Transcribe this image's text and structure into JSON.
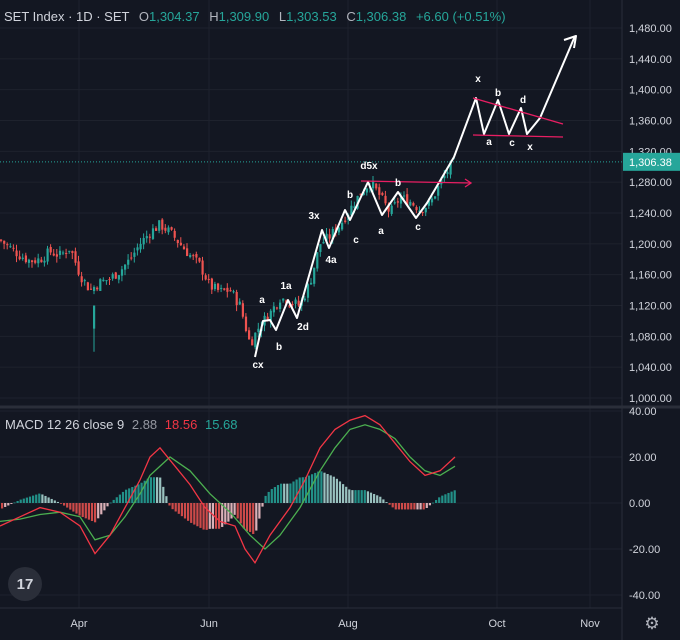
{
  "header": {
    "title": "SET Index · 1D · SET",
    "open_label": "O",
    "open": "1,304.37",
    "high_label": "H",
    "high": "1,309.90",
    "low_label": "L",
    "low": "1,303.53",
    "close_label": "C",
    "close": "1,306.38",
    "change": "+6.60 (+0.51%)"
  },
  "macd_header": {
    "name": "MACD 12 26 close 9",
    "hist": "2.88",
    "macd": "18.56",
    "signal": "15.68"
  },
  "price_axis": {
    "ticks": [
      "1,480.00",
      "1,440.00",
      "1,400.00",
      "1,360.00",
      "1,320.00",
      "1,280.00",
      "1,240.00",
      "1,200.00",
      "1,160.00",
      "1,120.00",
      "1,080.00",
      "1,040.00",
      "1,000.00"
    ],
    "last_price": "1,306.38"
  },
  "macd_axis": {
    "ticks": [
      "40.00",
      "20.00",
      "0.00",
      "-20.00",
      "-40.00"
    ]
  },
  "time_axis": {
    "ticks": [
      "Apr",
      "Jun",
      "Aug",
      "Oct",
      "Nov"
    ]
  },
  "colors": {
    "background": "#131722",
    "up": "#26a69a",
    "down": "#ef5350",
    "macd": "#f23645",
    "signal": "#4caf50",
    "wave": "#ffffff",
    "resistance": "#e91e63"
  },
  "icons": {
    "logo": "tradingview-logo",
    "settings": "gear-icon"
  },
  "chart_data": [
    {
      "type": "candlestick",
      "series_name": "SET Index",
      "interval": "1D",
      "ylim": [
        1000,
        1480
      ],
      "last": 1306.38,
      "anchors": [
        [
          0,
          1205
        ],
        [
          10,
          1195
        ],
        [
          20,
          1185
        ],
        [
          30,
          1178
        ],
        [
          40,
          1180
        ],
        [
          50,
          1190
        ],
        [
          60,
          1185
        ],
        [
          70,
          1195
        ],
        [
          80,
          1160
        ],
        [
          90,
          1140
        ],
        [
          100,
          1150
        ],
        [
          110,
          1155
        ],
        [
          120,
          1165
        ],
        [
          130,
          1180
        ],
        [
          140,
          1200
        ],
        [
          150,
          1215
        ],
        [
          160,
          1225
        ],
        [
          170,
          1215
        ],
        [
          180,
          1200
        ],
        [
          190,
          1185
        ],
        [
          200,
          1172
        ],
        [
          210,
          1145
        ],
        [
          220,
          1138
        ],
        [
          230,
          1140
        ],
        [
          240,
          1120
        ],
        [
          250,
          1070
        ],
        [
          260,
          1095
        ],
        [
          270,
          1110
        ],
        [
          280,
          1130
        ],
        [
          290,
          1125
        ],
        [
          300,
          1120
        ],
        [
          310,
          1150
        ],
        [
          320,
          1200
        ],
        [
          330,
          1210
        ],
        [
          340,
          1225
        ],
        [
          350,
          1245
        ],
        [
          360,
          1265
        ],
        [
          370,
          1280
        ],
        [
          380,
          1262
        ],
        [
          390,
          1240
        ],
        [
          400,
          1260
        ],
        [
          410,
          1255
        ],
        [
          420,
          1245
        ],
        [
          430,
          1252
        ],
        [
          440,
          1278
        ],
        [
          450,
          1300
        ],
        [
          455,
          1306
        ]
      ],
      "outlier": [
        94,
        1090,
        1120,
        1060
      ]
    },
    {
      "type": "line",
      "title": "MACD 12 26 close 9",
      "ylim": [
        -44,
        44
      ],
      "macd": [
        [
          0,
          -10
        ],
        [
          20,
          -6
        ],
        [
          40,
          -2
        ],
        [
          60,
          -4
        ],
        [
          80,
          -10
        ],
        [
          95,
          -22
        ],
        [
          110,
          -14
        ],
        [
          125,
          -2
        ],
        [
          140,
          10
        ],
        [
          150,
          20
        ],
        [
          160,
          24
        ],
        [
          175,
          16
        ],
        [
          190,
          8
        ],
        [
          205,
          -2
        ],
        [
          220,
          -8
        ],
        [
          235,
          -10
        ],
        [
          245,
          -20
        ],
        [
          255,
          -26
        ],
        [
          270,
          -14
        ],
        [
          290,
          -2
        ],
        [
          305,
          10
        ],
        [
          320,
          24
        ],
        [
          335,
          32
        ],
        [
          350,
          36
        ],
        [
          365,
          38
        ],
        [
          380,
          34
        ],
        [
          395,
          26
        ],
        [
          410,
          18
        ],
        [
          425,
          12
        ],
        [
          440,
          14
        ],
        [
          455,
          20
        ]
      ],
      "signal": [
        [
          0,
          -8
        ],
        [
          20,
          -7
        ],
        [
          40,
          -5
        ],
        [
          60,
          -4
        ],
        [
          80,
          -6
        ],
        [
          95,
          -16
        ],
        [
          110,
          -14
        ],
        [
          125,
          -6
        ],
        [
          140,
          4
        ],
        [
          150,
          12
        ],
        [
          170,
          20
        ],
        [
          190,
          14
        ],
        [
          210,
          4
        ],
        [
          230,
          -4
        ],
        [
          250,
          -14
        ],
        [
          265,
          -20
        ],
        [
          280,
          -14
        ],
        [
          300,
          -2
        ],
        [
          320,
          14
        ],
        [
          335,
          24
        ],
        [
          350,
          32
        ],
        [
          365,
          34
        ],
        [
          380,
          32
        ],
        [
          395,
          28
        ],
        [
          410,
          20
        ],
        [
          425,
          14
        ],
        [
          440,
          12
        ],
        [
          455,
          16
        ]
      ]
    }
  ],
  "waves": {
    "main_path": [
      [
        255,
        357
      ],
      [
        263,
        321
      ],
      [
        270,
        320
      ],
      [
        276,
        330
      ],
      [
        288,
        300
      ],
      [
        297,
        318
      ],
      [
        322,
        230
      ],
      [
        329,
        248
      ],
      [
        345,
        210
      ],
      [
        350,
        220
      ],
      [
        368,
        182
      ],
      [
        382,
        215
      ],
      [
        398,
        192
      ],
      [
        416,
        218
      ],
      [
        427,
        203
      ],
      [
        454,
        157
      ],
      [
        476,
        98
      ],
      [
        484,
        134
      ],
      [
        498,
        100
      ],
      [
        509,
        134
      ],
      [
        521,
        108
      ],
      [
        527,
        134
      ],
      [
        540,
        118
      ],
      [
        575,
        36
      ]
    ],
    "arrow_tip": [
      576,
      36
    ],
    "resistance1": [
      [
        361,
        181
      ],
      [
        471,
        183
      ]
    ],
    "resistance2": [
      [
        473,
        98
      ],
      [
        563,
        124
      ]
    ],
    "support2": [
      [
        473,
        135
      ],
      [
        563,
        137
      ]
    ],
    "labels": [
      {
        "text": "cx",
        "pos": [
          258,
          368
        ]
      },
      {
        "text": "a",
        "pos": [
          262,
          303
        ]
      },
      {
        "text": "b",
        "pos": [
          279,
          350
        ]
      },
      {
        "text": "1a",
        "pos": [
          286,
          289
        ]
      },
      {
        "text": "2d",
        "pos": [
          303,
          330
        ]
      },
      {
        "text": "3x",
        "pos": [
          314,
          219
        ]
      },
      {
        "text": "4a",
        "pos": [
          331,
          263
        ]
      },
      {
        "text": "b",
        "pos": [
          350,
          198
        ]
      },
      {
        "text": "c",
        "pos": [
          356,
          243
        ]
      },
      {
        "text": "d5x",
        "pos": [
          369,
          169
        ]
      },
      {
        "text": "b",
        "pos": [
          398,
          186
        ]
      },
      {
        "text": "a",
        "pos": [
          381,
          234
        ]
      },
      {
        "text": "c",
        "pos": [
          418,
          230
        ]
      },
      {
        "text": "x",
        "pos": [
          478,
          82
        ]
      },
      {
        "text": "b",
        "pos": [
          498,
          96
        ]
      },
      {
        "text": "d",
        "pos": [
          523,
          103
        ]
      },
      {
        "text": "a",
        "pos": [
          489,
          145
        ]
      },
      {
        "text": "c",
        "pos": [
          512,
          146
        ]
      },
      {
        "text": "x",
        "pos": [
          530,
          150
        ]
      }
    ]
  }
}
